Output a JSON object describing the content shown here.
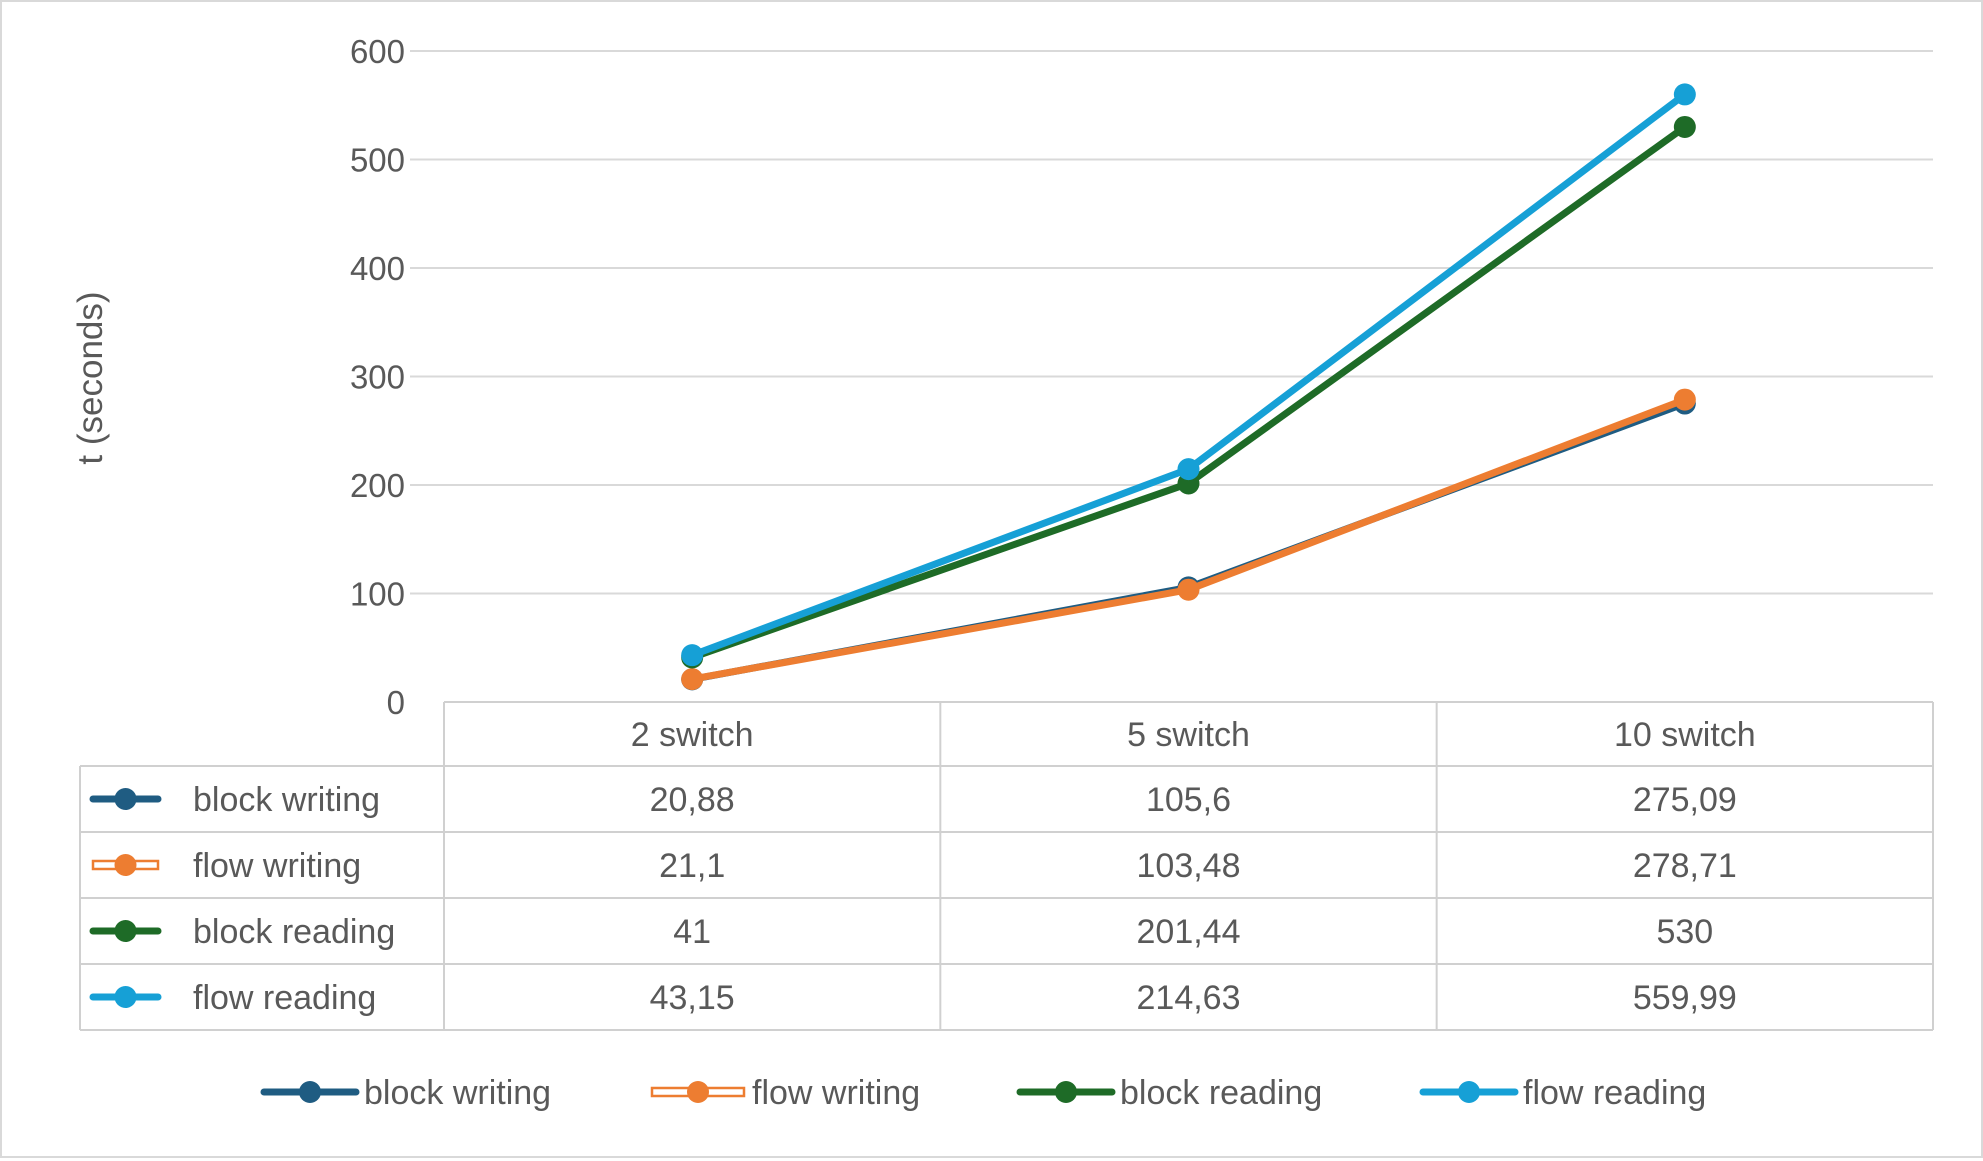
{
  "chart_data": {
    "type": "line",
    "ylabel": "t (seconds)",
    "categories": [
      "2 switch",
      "5 switch",
      "10 switch"
    ],
    "ylim": [
      0,
      600
    ],
    "yticks": [
      0,
      100,
      200,
      300,
      400,
      500,
      600
    ],
    "grid": true,
    "legend": "bottom",
    "has_data_table": true,
    "series": [
      {
        "name": "block writing",
        "color": "#1f5c82",
        "marker_fill": "#1f5c82",
        "values": [
          20.88,
          105.6,
          275.09
        ],
        "labels": [
          "20,88",
          "105,6",
          "275,09"
        ]
      },
      {
        "name": "flow writing",
        "color": "#ed7d31",
        "marker_fill": "#ed7d31",
        "legend_hollow_line": true,
        "values": [
          21.1,
          103.48,
          278.71
        ],
        "labels": [
          "21,1",
          "103,48",
          "278,71"
        ]
      },
      {
        "name": "block reading",
        "color": "#1e6b27",
        "marker_fill": "#1e6b27",
        "values": [
          41,
          201.44,
          530
        ],
        "labels": [
          "41",
          "201,44",
          "530"
        ]
      },
      {
        "name": "flow reading",
        "color": "#16a0d6",
        "marker_fill": "#16a0d6",
        "values": [
          43.15,
          214.63,
          559.99
        ],
        "labels": [
          "43,15",
          "214,63",
          "559,99"
        ]
      }
    ]
  }
}
